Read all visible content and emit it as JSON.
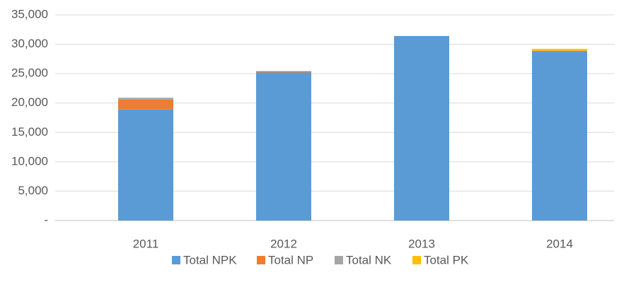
{
  "chart_data": {
    "type": "stacked_bar",
    "categories": [
      "2011",
      "2012",
      "2013",
      "2014"
    ],
    "series": [
      {
        "name": "Total NPK",
        "color": "#5b9bd5",
        "values": [
          18900,
          25200,
          31400,
          28800
        ]
      },
      {
        "name": "Total NP",
        "color": "#ed7d31",
        "values": [
          1700,
          200,
          0,
          100
        ]
      },
      {
        "name": "Total NK",
        "color": "#a5a5a5",
        "values": [
          300,
          50,
          0,
          0
        ]
      },
      {
        "name": "Total PK",
        "color": "#ffc000",
        "values": [
          0,
          0,
          0,
          300
        ]
      }
    ],
    "ylim": [
      0,
      35000
    ],
    "yticks": [
      {
        "value": 0,
        "label": "-"
      },
      {
        "value": 5000,
        "label": "5,000"
      },
      {
        "value": 10000,
        "label": "10,000"
      },
      {
        "value": 15000,
        "label": "15,000"
      },
      {
        "value": 20000,
        "label": "20,000"
      },
      {
        "value": 25000,
        "label": "25,000"
      },
      {
        "value": 30000,
        "label": "30,000"
      },
      {
        "value": 35000,
        "label": "35,000"
      }
    ],
    "grid": true,
    "legend": "bottom"
  }
}
